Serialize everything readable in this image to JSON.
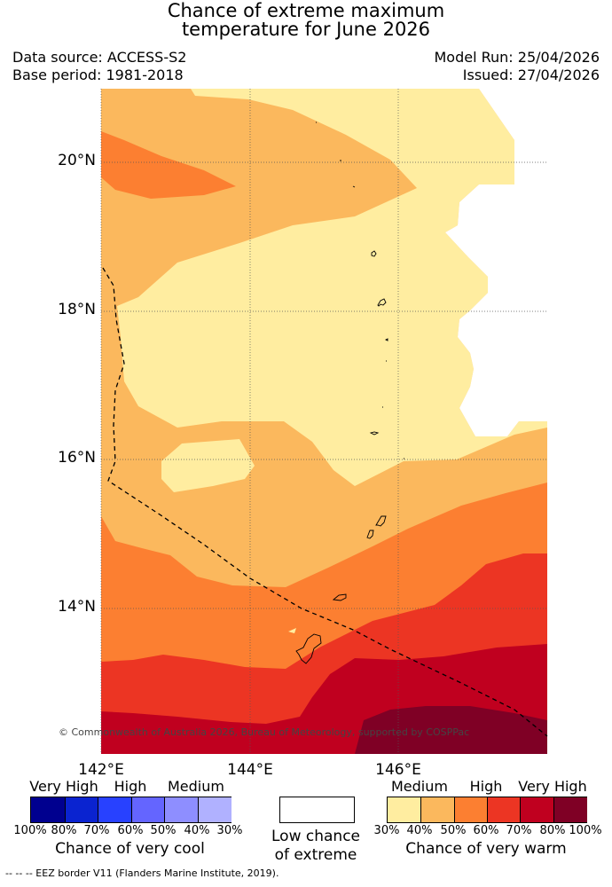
{
  "title": {
    "line1": "Chance of extreme maximum",
    "line2": "temperature for June 2026"
  },
  "meta": {
    "data_source": "Data source: ACCESS-S2",
    "base_period": "Base period: 1981-2018",
    "model_run": "Model Run: 25/04/2026",
    "issued": "Issued: 27/04/2026"
  },
  "map": {
    "lat_labels": [
      "20°N",
      "18°N",
      "16°N",
      "14°N"
    ],
    "lon_labels": [
      "142°E",
      "144°E",
      "146°E"
    ],
    "copyright": "© Commonwealth of Australia 2026, Bureau of Meteorology, supported by COSPPac"
  },
  "legend": {
    "cool": {
      "categories": [
        "Very High",
        "High",
        "Medium"
      ],
      "ticks": [
        "100%",
        "80%",
        "70%",
        "60%",
        "50%",
        "40%",
        "30%"
      ],
      "title": "Chance of very cool",
      "colors": [
        "#00008f",
        "#0a23d0",
        "#2841ff",
        "#6465ff",
        "#8e8eff",
        "#b0b1ff"
      ]
    },
    "low": {
      "line1": "Low chance",
      "line2": "of extreme"
    },
    "warm": {
      "categories": [
        "Medium",
        "High",
        "Very High"
      ],
      "ticks": [
        "30%",
        "40%",
        "50%",
        "60%",
        "70%",
        "80%",
        "100%"
      ],
      "title": "Chance of very warm",
      "colors": [
        "#ffeda0",
        "#fbb85d",
        "#fc7f31",
        "#ec3523",
        "#c0001f",
        "#7f0025"
      ]
    }
  },
  "footer": "--  --  -- EEZ border V11 (Flanders Marine Institute, 2019)."
}
